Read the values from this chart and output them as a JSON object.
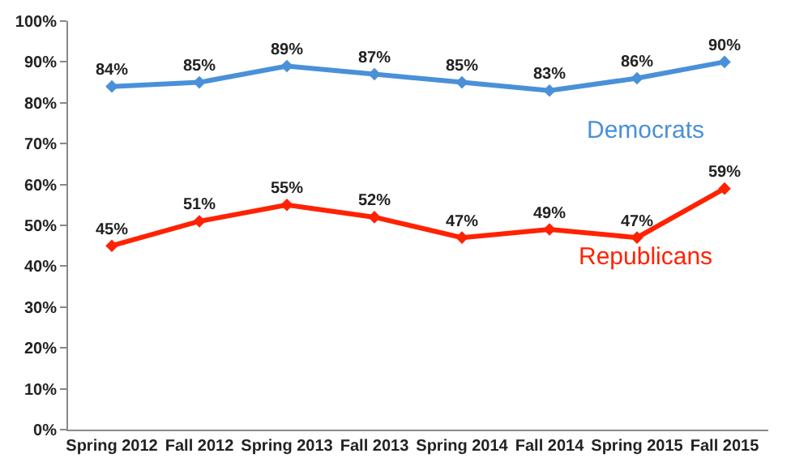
{
  "chart_data": {
    "type": "line",
    "categories": [
      "Spring 2012",
      "Fall 2012",
      "Spring 2013",
      "Fall 2013",
      "Spring 2014",
      "Fall 2014",
      "Spring 2015",
      "Fall 2015"
    ],
    "series": [
      {
        "name": "Democrats",
        "color": "#4a90d9",
        "values": [
          84,
          85,
          89,
          87,
          85,
          83,
          86,
          90
        ],
        "value_labels": [
          "84%",
          "85%",
          "89%",
          "87%",
          "85%",
          "83%",
          "86%",
          "90%"
        ]
      },
      {
        "name": "Republicans",
        "color": "#ff2200",
        "values": [
          45,
          51,
          55,
          52,
          47,
          49,
          47,
          59
        ],
        "value_labels": [
          "45%",
          "51%",
          "55%",
          "52%",
          "47%",
          "49%",
          "47%",
          "59%"
        ]
      }
    ],
    "ylim": [
      0,
      100
    ],
    "yticks": [
      {
        "value": 0,
        "label": "0%"
      },
      {
        "value": 10,
        "label": "10%"
      },
      {
        "value": 20,
        "label": "20%"
      },
      {
        "value": 30,
        "label": "30%"
      },
      {
        "value": 40,
        "label": "40%"
      },
      {
        "value": 50,
        "label": "50%"
      },
      {
        "value": 60,
        "label": "60%"
      },
      {
        "value": 70,
        "label": "70%"
      },
      {
        "value": 80,
        "label": "80%"
      },
      {
        "value": 90,
        "label": "90%"
      },
      {
        "value": 100,
        "label": "100%"
      }
    ],
    "legend": false,
    "marker": "diamond",
    "line_style": "solid"
  }
}
